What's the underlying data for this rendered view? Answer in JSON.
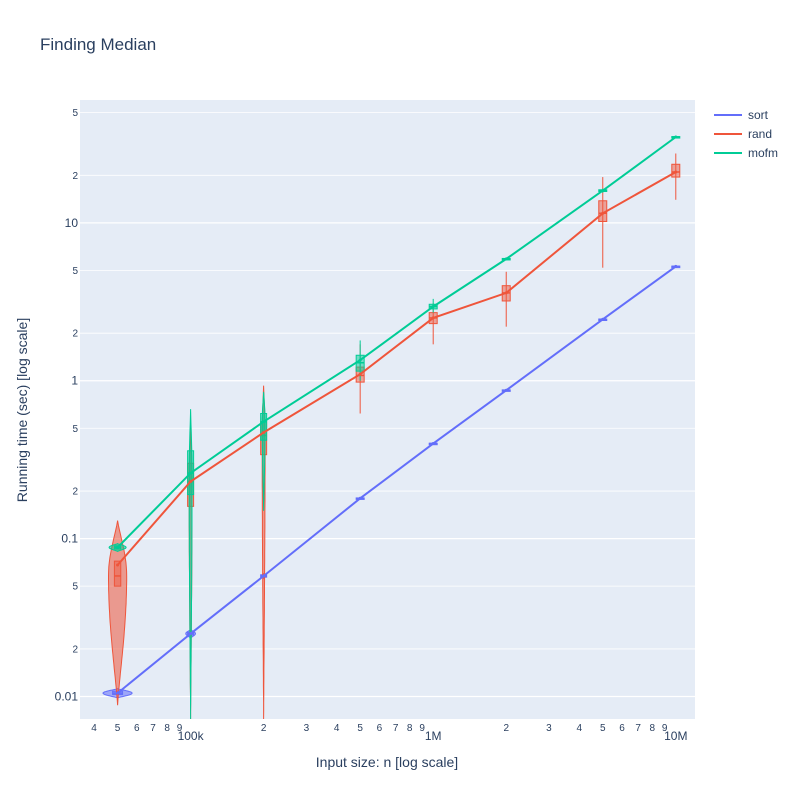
{
  "chart_data": {
    "type": "line",
    "title": "Finding Median",
    "xlabel": "Input size: n [log scale]",
    "ylabel": "Running time (sec) [log scale]",
    "x_scale": "log",
    "y_scale": "log",
    "xlim": [
      35000,
      12000000
    ],
    "ylim": [
      0.0072,
      60
    ],
    "x_major_ticks": [
      {
        "value": 100000,
        "label": "100k"
      },
      {
        "value": 1000000,
        "label": "1M"
      },
      {
        "value": 10000000,
        "label": "10M"
      }
    ],
    "x_minor_ticks": [
      {
        "value": 40000,
        "label": "4"
      },
      {
        "value": 50000,
        "label": "5"
      },
      {
        "value": 60000,
        "label": "6"
      },
      {
        "value": 70000,
        "label": "7"
      },
      {
        "value": 80000,
        "label": "8"
      },
      {
        "value": 90000,
        "label": "9"
      },
      {
        "value": 200000,
        "label": "2"
      },
      {
        "value": 300000,
        "label": "3"
      },
      {
        "value": 400000,
        "label": "4"
      },
      {
        "value": 500000,
        "label": "5"
      },
      {
        "value": 600000,
        "label": "6"
      },
      {
        "value": 700000,
        "label": "7"
      },
      {
        "value": 800000,
        "label": "8"
      },
      {
        "value": 900000,
        "label": "9"
      },
      {
        "value": 2000000,
        "label": "2"
      },
      {
        "value": 3000000,
        "label": "3"
      },
      {
        "value": 4000000,
        "label": "4"
      },
      {
        "value": 5000000,
        "label": "5"
      },
      {
        "value": 6000000,
        "label": "6"
      },
      {
        "value": 7000000,
        "label": "7"
      },
      {
        "value": 8000000,
        "label": "8"
      },
      {
        "value": 9000000,
        "label": "9"
      }
    ],
    "y_major_ticks": [
      {
        "value": 0.01,
        "label": "0.01"
      },
      {
        "value": 0.1,
        "label": "0.1"
      },
      {
        "value": 1,
        "label": "1"
      },
      {
        "value": 10,
        "label": "10"
      }
    ],
    "y_minor_ticks": [
      {
        "value": 0.02,
        "label": "2"
      },
      {
        "value": 0.05,
        "label": "5"
      },
      {
        "value": 0.2,
        "label": "2"
      },
      {
        "value": 0.5,
        "label": "5"
      },
      {
        "value": 2,
        "label": "2"
      },
      {
        "value": 5,
        "label": "5"
      },
      {
        "value": 20,
        "label": "2"
      },
      {
        "value": 50,
        "label": "5"
      }
    ],
    "legend_position": "top-right",
    "grid": true,
    "series": [
      {
        "name": "sort",
        "color": "#636efa",
        "x": [
          50000,
          100000,
          200000,
          500000,
          1000000,
          2000000,
          5000000,
          10000000
        ],
        "y": [
          0.0105,
          0.025,
          0.058,
          0.18,
          0.4,
          0.87,
          2.45,
          5.3
        ]
      },
      {
        "name": "rand",
        "color": "#ef553b",
        "x": [
          50000,
          100000,
          200000,
          500000,
          1000000,
          2000000,
          5000000,
          10000000
        ],
        "y": [
          0.068,
          0.23,
          0.47,
          1.1,
          2.5,
          3.6,
          11.5,
          21
        ]
      },
      {
        "name": "mofm",
        "color": "#00cc96",
        "x": [
          50000,
          100000,
          200000,
          500000,
          1000000,
          2000000,
          5000000,
          10000000
        ],
        "y": [
          0.088,
          0.26,
          0.55,
          1.35,
          2.95,
          5.9,
          16,
          35
        ]
      }
    ],
    "distributions": [
      {
        "series": "sort",
        "kind": "violin",
        "x": 50000,
        "min": 0.0098,
        "q1": 0.0103,
        "median": 0.0105,
        "q3": 0.0108,
        "max": 0.0112,
        "width": 0.12
      },
      {
        "series": "sort",
        "kind": "violin",
        "x": 100000,
        "min": 0.0235,
        "q1": 0.0245,
        "median": 0.025,
        "q3": 0.0255,
        "max": 0.0265,
        "width": 0.04
      },
      {
        "series": "sort",
        "kind": "violin",
        "x": 200000,
        "min": 0.056,
        "q1": 0.057,
        "median": 0.058,
        "q3": 0.059,
        "max": 0.06,
        "width": 0.02
      },
      {
        "series": "sort",
        "kind": "box",
        "x": 500000,
        "min": 0.177,
        "q1": 0.179,
        "median": 0.18,
        "q3": 0.181,
        "max": 0.183,
        "width": 0.02
      },
      {
        "series": "sort",
        "kind": "box",
        "x": 1000000,
        "min": 0.395,
        "q1": 0.398,
        "median": 0.4,
        "q3": 0.402,
        "max": 0.405,
        "width": 0.02
      },
      {
        "series": "sort",
        "kind": "box",
        "x": 2000000,
        "min": 0.86,
        "q1": 0.865,
        "median": 0.87,
        "q3": 0.875,
        "max": 0.88,
        "width": 0.02
      },
      {
        "series": "sort",
        "kind": "box",
        "x": 5000000,
        "min": 2.42,
        "q1": 2.44,
        "median": 2.45,
        "q3": 2.46,
        "max": 2.48,
        "width": 0.02
      },
      {
        "series": "sort",
        "kind": "box",
        "x": 10000000,
        "min": 5.25,
        "q1": 5.28,
        "median": 5.3,
        "q3": 5.32,
        "max": 5.36,
        "width": 0.02
      },
      {
        "series": "rand",
        "kind": "violin",
        "x": 50000,
        "min": 0.0088,
        "q1": 0.05,
        "median": 0.058,
        "q3": 0.072,
        "max": 0.13,
        "width": 0.075
      },
      {
        "series": "rand",
        "kind": "violin",
        "x": 100000,
        "min": 0.0072,
        "q1": 0.16,
        "median": 0.23,
        "q3": 0.3,
        "max": 0.5,
        "width": 0.012
      },
      {
        "series": "rand",
        "kind": "violin",
        "x": 200000,
        "min": 0.0072,
        "q1": 0.34,
        "median": 0.45,
        "q3": 0.55,
        "max": 0.93,
        "width": 0.012
      },
      {
        "series": "rand",
        "kind": "box",
        "x": 500000,
        "min": 0.62,
        "q1": 0.98,
        "median": 1.08,
        "q3": 1.22,
        "max": 1.7,
        "width": 0.02
      },
      {
        "series": "rand",
        "kind": "box",
        "x": 1000000,
        "min": 1.7,
        "q1": 2.3,
        "median": 2.5,
        "q3": 2.7,
        "max": 3.1,
        "width": 0.02
      },
      {
        "series": "rand",
        "kind": "box",
        "x": 2000000,
        "min": 2.2,
        "q1": 3.2,
        "median": 3.6,
        "q3": 4.0,
        "max": 4.9,
        "width": 0.02
      },
      {
        "series": "rand",
        "kind": "box",
        "x": 5000000,
        "min": 5.2,
        "q1": 10.2,
        "median": 11.5,
        "q3": 13.8,
        "max": 19.5,
        "width": 0.02
      },
      {
        "series": "rand",
        "kind": "box",
        "x": 10000000,
        "min": 14,
        "q1": 19.5,
        "median": 21,
        "q3": 23.5,
        "max": 27.5,
        "width": 0.02
      },
      {
        "series": "mofm",
        "kind": "violin",
        "x": 50000,
        "min": 0.083,
        "q1": 0.086,
        "median": 0.088,
        "q3": 0.09,
        "max": 0.093,
        "width": 0.07
      },
      {
        "series": "mofm",
        "kind": "violin",
        "x": 100000,
        "min": 0.0072,
        "q1": 0.19,
        "median": 0.26,
        "q3": 0.36,
        "max": 0.66,
        "width": 0.012
      },
      {
        "series": "mofm",
        "kind": "violin",
        "x": 200000,
        "min": 0.15,
        "q1": 0.42,
        "median": 0.55,
        "q3": 0.62,
        "max": 0.85,
        "width": 0.012
      },
      {
        "series": "mofm",
        "kind": "box",
        "x": 500000,
        "min": 1.0,
        "q1": 1.15,
        "median": 1.3,
        "q3": 1.45,
        "max": 1.8,
        "width": 0.015
      },
      {
        "series": "mofm",
        "kind": "box",
        "x": 1000000,
        "min": 2.7,
        "q1": 2.85,
        "median": 2.95,
        "q3": 3.05,
        "max": 3.3,
        "width": 0.02
      },
      {
        "series": "mofm",
        "kind": "box",
        "x": 2000000,
        "min": 5.8,
        "q1": 5.85,
        "median": 5.9,
        "q3": 5.95,
        "max": 6.05,
        "width": 0.02
      },
      {
        "series": "mofm",
        "kind": "box",
        "x": 5000000,
        "min": 15.5,
        "q1": 15.8,
        "median": 16,
        "q3": 16.2,
        "max": 16.5,
        "width": 0.02
      },
      {
        "series": "mofm",
        "kind": "box",
        "x": 10000000,
        "min": 34.5,
        "q1": 34.8,
        "median": 35,
        "q3": 35.2,
        "max": 35.6,
        "width": 0.02
      }
    ]
  }
}
